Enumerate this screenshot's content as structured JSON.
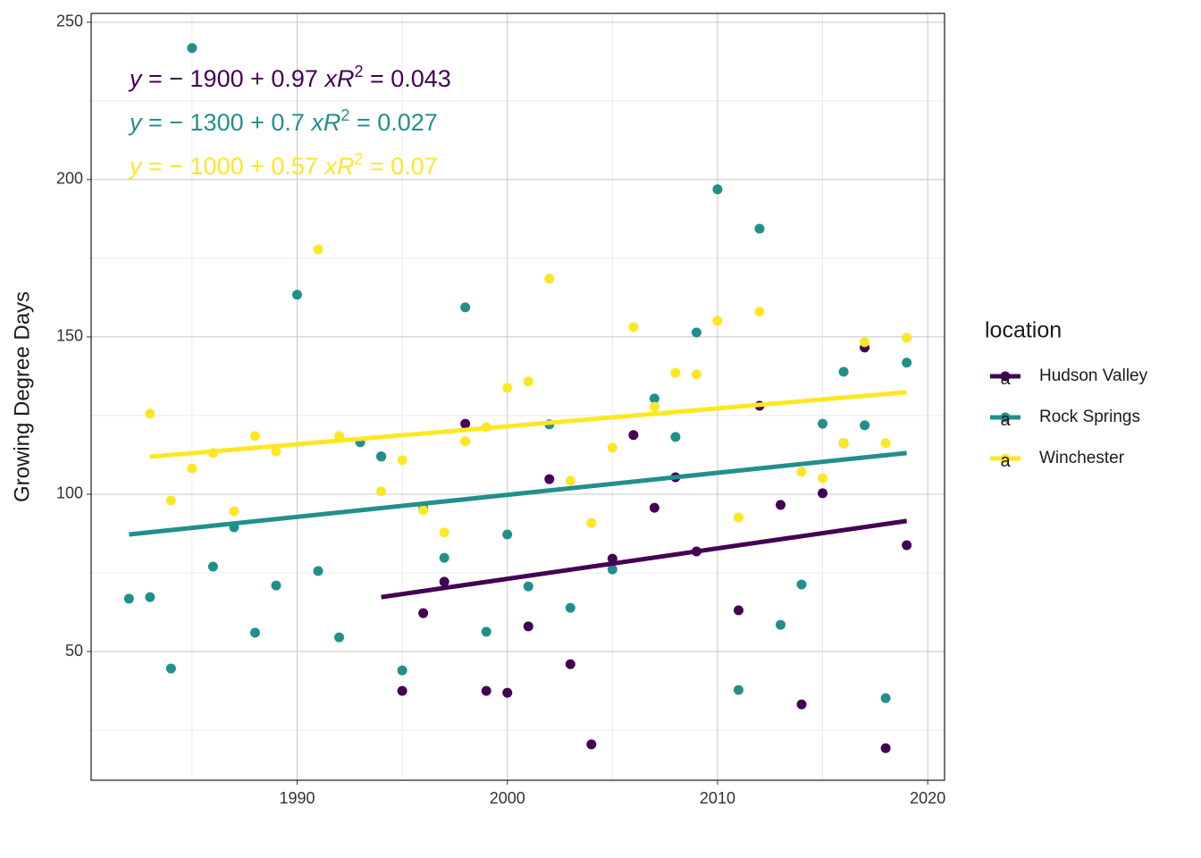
{
  "chart_data": {
    "type": "scatter",
    "y_label": "Growing Degree Days",
    "legend_title": "location",
    "legend_key_glyph": "a",
    "legend_position": "right",
    "grid": true,
    "xlim": [
      1980.2,
      2020.8
    ],
    "ylim": [
      9.1,
      252.8
    ],
    "xticks": [
      1990,
      2000,
      2010,
      2020
    ],
    "yticks": [
      50,
      100,
      150,
      200,
      250
    ],
    "minor_xticks": [
      1985,
      1995,
      2005,
      2015
    ],
    "minor_yticks": [
      25,
      75,
      125,
      175,
      225
    ],
    "series": [
      {
        "name": "Hudson Valley",
        "color": "#440154",
        "x": [
          1994,
          1995,
          1996,
          1997,
          1998,
          1999,
          2000,
          2001,
          2002,
          2003,
          2004,
          2005,
          2006,
          2007,
          2008,
          2009,
          2011,
          2012,
          2013,
          2014,
          2015,
          2016,
          2017,
          2018,
          2019
        ],
        "values": [
          112,
          37.5,
          62.2,
          72.2,
          122.4,
          37.5,
          36.9,
          58,
          104.8,
          46,
          20.5,
          79.5,
          118.8,
          95.7,
          105.4,
          81.8,
          63.1,
          128.1,
          96.6,
          33.2,
          100.3,
          116.2,
          146.6,
          19.3,
          83.8
        ],
        "fit_x": [
          1994,
          2019
        ],
        "fit_values": [
          67.3,
          91.5
        ],
        "eq_y": "y",
        "eq_rhs": " = − 1900 + 0.97 ",
        "eq_x": "x",
        "eq_r": "R",
        "eq_sup": "2",
        "eq_r2": " = 0.043"
      },
      {
        "name": "Rock Springs",
        "color": "#21908C",
        "x": [
          1982,
          1983,
          1984,
          1985,
          1986,
          1987,
          1988,
          1989,
          1990,
          1991,
          1992,
          1993,
          1994,
          1995,
          1996,
          1997,
          1998,
          1999,
          2000,
          2001,
          2002,
          2003,
          2005,
          2007,
          2008,
          2009,
          2010,
          2011,
          2012,
          2013,
          2014,
          2015,
          2016,
          2017,
          2018,
          2019
        ],
        "values": [
          66.8,
          67.3,
          44.6,
          241.8,
          77,
          89.5,
          56,
          71,
          163.4,
          75.6,
          54.5,
          116.5,
          112,
          44,
          95.7,
          79.8,
          159.4,
          56.3,
          87.2,
          70.7,
          122.2,
          63.9,
          76.1,
          130.4,
          118.2,
          151.4,
          196.9,
          37.8,
          184.4,
          58.5,
          71.3,
          122.4,
          138.9,
          121.9,
          35.2,
          141.8
        ],
        "fit_x": [
          1982,
          2019
        ],
        "fit_values": [
          87.2,
          113.1
        ],
        "eq_y": "y",
        "eq_rhs": " = − 1300 + 0.7 ",
        "eq_x": "x",
        "eq_r": "R",
        "eq_sup": "2",
        "eq_r2": " = 0.027"
      },
      {
        "name": "Winchester",
        "color": "#FDE725",
        "x": [
          1983,
          1984,
          1985,
          1986,
          1987,
          1988,
          1989,
          1991,
          1992,
          1994,
          1995,
          1996,
          1997,
          1998,
          1999,
          2000,
          2001,
          2002,
          2003,
          2004,
          2005,
          2006,
          2007,
          2008,
          2009,
          2010,
          2011,
          2012,
          2014,
          2015,
          2016,
          2017,
          2018,
          2019
        ],
        "values": [
          125.6,
          98,
          108.2,
          113.1,
          94.6,
          118.5,
          113.6,
          177.8,
          118.5,
          100.9,
          110.8,
          94.9,
          87.8,
          116.8,
          121.3,
          133.8,
          135.8,
          168.5,
          104.3,
          90.9,
          114.8,
          153.1,
          127.8,
          138.6,
          138.1,
          155.1,
          92.6,
          158,
          107.1,
          105.1,
          116.2,
          148.3,
          116.2,
          149.7
        ],
        "fit_x": [
          1983,
          2019
        ],
        "fit_values": [
          111.9,
          132.4
        ],
        "eq_y": "y",
        "eq_rhs": " = − 1000 + 0.57 ",
        "eq_x": "x",
        "eq_r": "R",
        "eq_sup": "2",
        "eq_r2": " = 0.07"
      }
    ]
  }
}
